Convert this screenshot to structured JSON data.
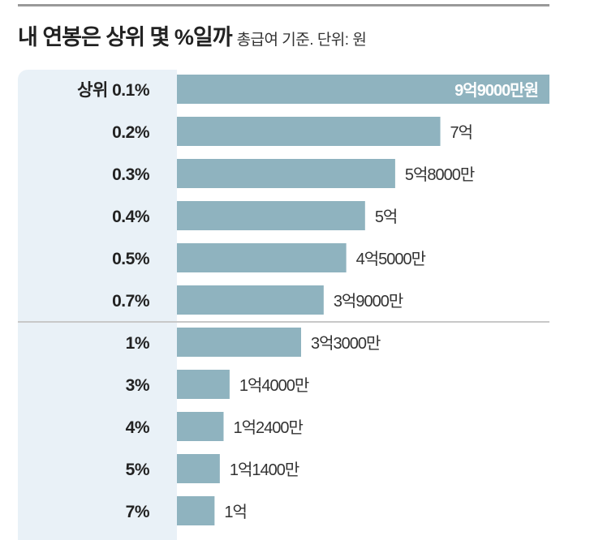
{
  "chart_data": {
    "type": "bar",
    "orientation": "horizontal",
    "title": "내 연봉은 상위 몇 %일까",
    "subtitle": "총급여 기준. 단위: 원",
    "categories": [
      "상위 0.1%",
      "0.2%",
      "0.3%",
      "0.4%",
      "0.5%",
      "0.7%",
      "1%",
      "3%",
      "4%",
      "5%",
      "7%"
    ],
    "values": [
      99000,
      70000,
      58000,
      50000,
      45000,
      39000,
      33000,
      14000,
      12400,
      11400,
      10000
    ],
    "value_unit": "만원",
    "data_labels": [
      "9억9000만원",
      "7억",
      "5억8000만",
      "5억",
      "4억5000만",
      "3억9000만",
      "3억3000만",
      "1억4000만",
      "1억2400만",
      "1억1400만",
      "1억"
    ],
    "xlim": [
      0,
      99000
    ],
    "grid": false,
    "legend": "none",
    "colors": {
      "bar": "#8fb3bf",
      "label_panel": "#e9f1f7",
      "separator": "#c8c8c8"
    }
  }
}
